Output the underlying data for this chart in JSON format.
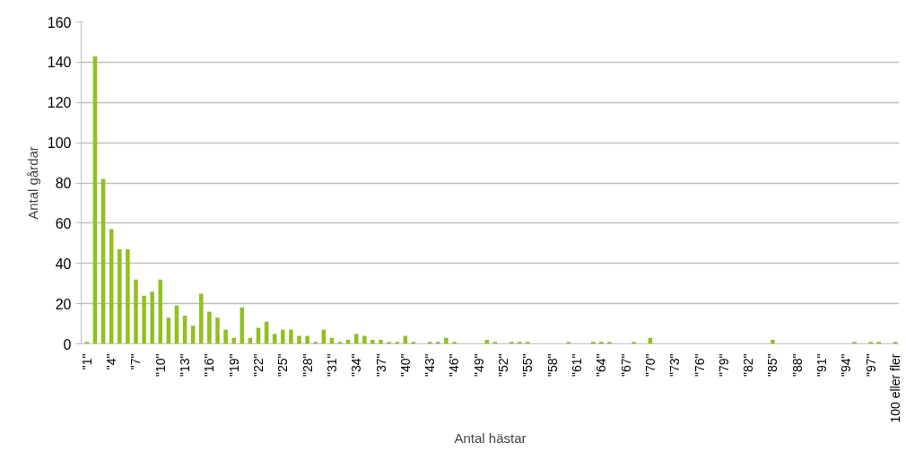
{
  "chart_data": {
    "type": "bar",
    "xlabel": "Antal hästar",
    "ylabel": "Antal gårdar",
    "categories": [
      "\"1\"",
      null,
      null,
      "\"4\"",
      null,
      null,
      "\"7\"",
      null,
      null,
      "\"10\"",
      null,
      null,
      "\"13\"",
      null,
      null,
      "\"16\"",
      null,
      null,
      "\"19\"",
      null,
      null,
      "\"22\"",
      null,
      null,
      "\"25\"",
      null,
      null,
      "\"28\"",
      null,
      null,
      "\"31\"",
      null,
      null,
      "\"34\"",
      null,
      null,
      "\"37\"",
      null,
      null,
      "\"40\"",
      null,
      null,
      "\"43\"",
      null,
      null,
      "\"46\"",
      null,
      null,
      "\"49\"",
      null,
      null,
      "\"52\"",
      null,
      null,
      "\"55\"",
      null,
      null,
      "\"58\"",
      null,
      null,
      "\"61\"",
      null,
      null,
      "\"64\"",
      null,
      null,
      "\"67\"",
      null,
      null,
      "\"70\"",
      null,
      null,
      "\"73\"",
      null,
      null,
      "\"76\"",
      null,
      null,
      "\"79\"",
      null,
      null,
      "\"82\"",
      null,
      null,
      "\"85\"",
      null,
      null,
      "\"88\"",
      null,
      null,
      "\"91\"",
      null,
      null,
      "\"94\"",
      null,
      null,
      "\"97\"",
      null,
      null,
      "100 eller fler"
    ],
    "values": [
      1,
      143,
      82,
      57,
      47,
      47,
      32,
      24,
      26,
      32,
      13,
      19,
      14,
      9,
      25,
      16,
      13,
      7,
      3,
      18,
      3,
      8,
      11,
      5,
      7,
      7,
      4,
      4,
      1,
      7,
      3,
      1,
      2,
      5,
      4,
      2,
      2,
      1,
      1,
      4,
      1,
      0,
      1,
      1,
      3,
      1,
      0,
      0,
      0,
      2,
      1,
      0,
      1,
      1,
      1,
      0,
      0,
      0,
      0,
      1,
      0,
      0,
      1,
      1,
      1,
      0,
      0,
      1,
      0,
      3,
      0,
      0,
      0,
      0,
      0,
      0,
      0,
      0,
      0,
      0,
      0,
      0,
      0,
      0,
      2,
      0,
      0,
      0,
      0,
      0,
      0,
      0,
      0,
      0,
      1,
      0,
      1,
      1,
      0,
      1
    ],
    "color": "#92c01f",
    "ylim": [
      0,
      160
    ],
    "yticks": [
      0,
      20,
      40,
      60,
      80,
      100,
      120,
      140,
      160
    ],
    "grid": "y"
  }
}
